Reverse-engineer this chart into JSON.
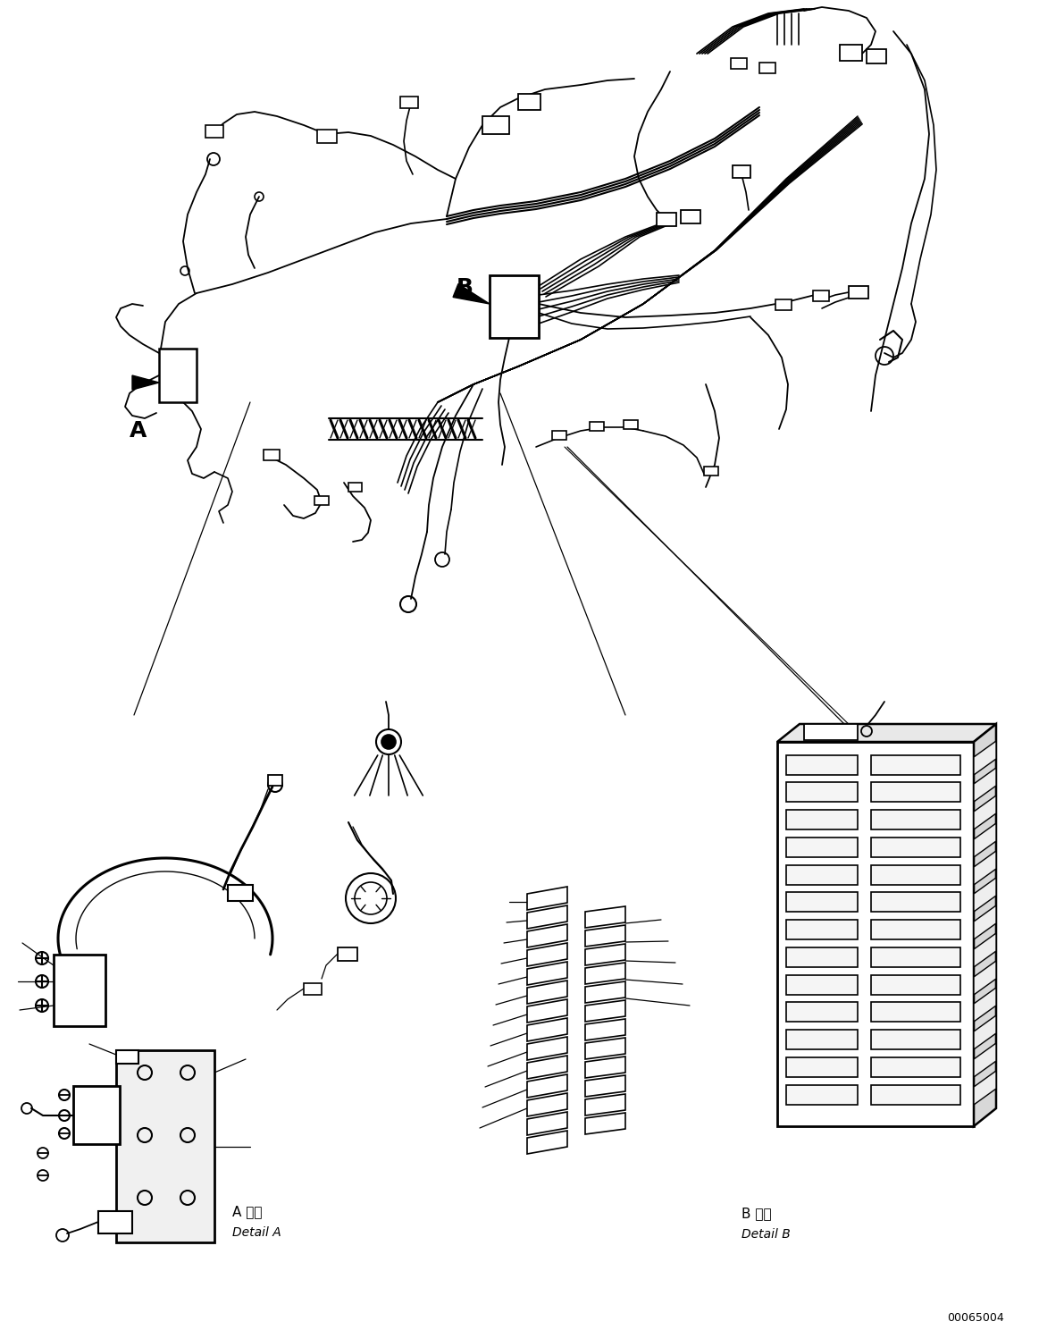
{
  "background_color": "#ffffff",
  "line_color": "#000000",
  "figure_width": 11.63,
  "figure_height": 14.88,
  "dpi": 100,
  "label_A": "A",
  "label_B": "B",
  "detail_A_jp": "A 詳細",
  "detail_A_en": "Detail A",
  "detail_B_jp": "B 詳細",
  "detail_B_en": "Detail B",
  "part_number": "00065004",
  "font_size_label": 18,
  "font_size_detail_jp": 11,
  "font_size_detail_en": 10,
  "font_size_part": 9
}
